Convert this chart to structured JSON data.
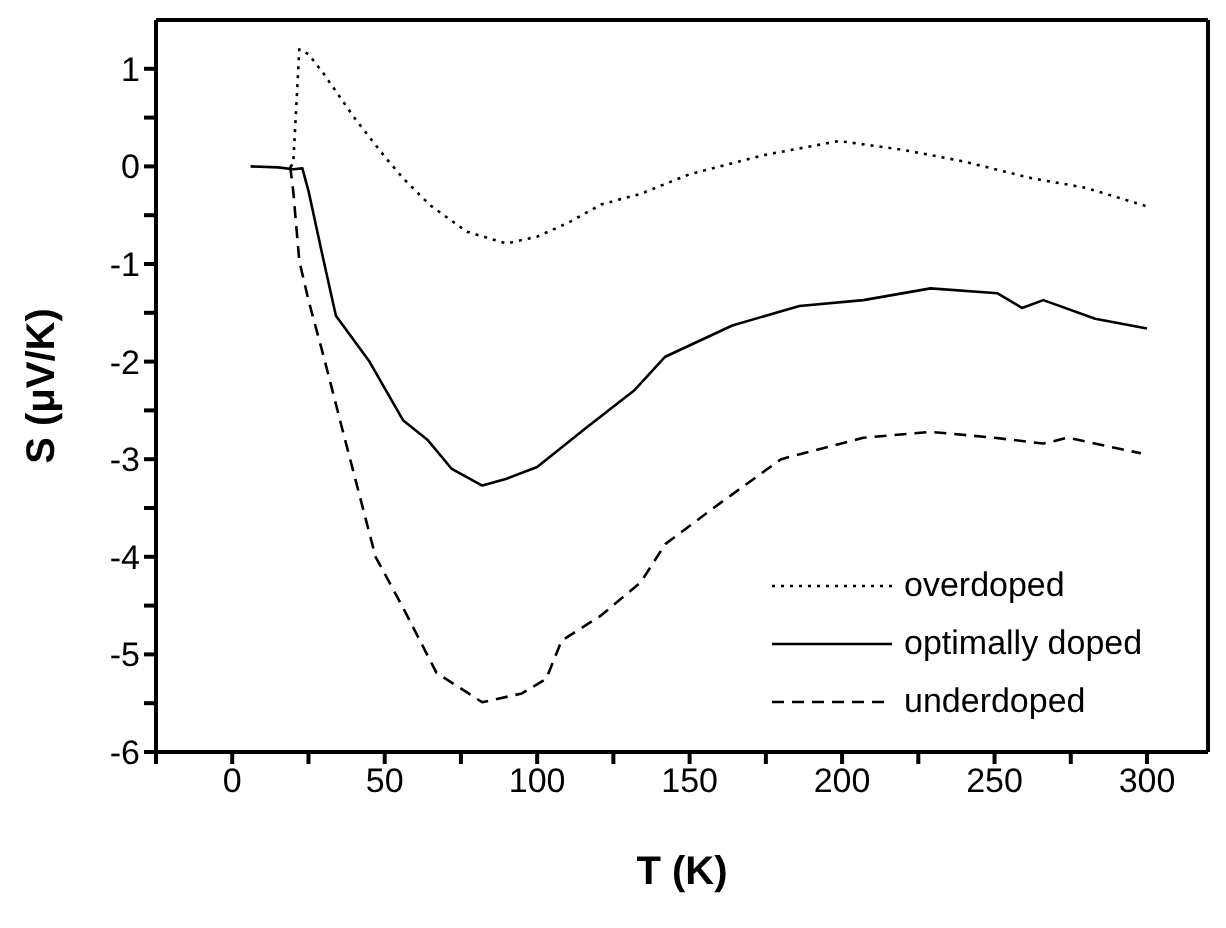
{
  "chart_data": {
    "type": "line",
    "xlabel": "T (K)",
    "ylabel": "S (μV/K)",
    "xlim": [
      -25,
      320
    ],
    "ylim": [
      -6,
      1.5
    ],
    "xticks": [
      {
        "value": -25,
        "label": null
      },
      0,
      {
        "value": 25,
        "label": null
      },
      50,
      {
        "value": 75,
        "label": null
      },
      100,
      {
        "value": 125,
        "label": null
      },
      150,
      {
        "value": 175,
        "label": null
      },
      200,
      {
        "value": 225,
        "label": null
      },
      250,
      {
        "value": 275,
        "label": null
      },
      300
    ],
    "yticks": [
      -6,
      {
        "value": -5.5,
        "label": null
      },
      -5,
      {
        "value": -4.5,
        "label": null
      },
      -4,
      {
        "value": -3.5,
        "label": null
      },
      -3,
      {
        "value": -2.5,
        "label": null
      },
      -2,
      {
        "value": -1.5,
        "label": null
      },
      -1,
      {
        "value": -0.5,
        "label": null
      },
      0,
      {
        "value": 0.5,
        "label": null
      },
      1
    ],
    "legend": "bottom right",
    "marker": "none",
    "series": [
      {
        "name": "overdoped",
        "color": "#000000",
        "line_style": "dotted",
        "x": [
          19,
          20,
          22,
          25,
          30,
          40,
          50,
          56,
          65,
          77,
          90,
          100,
          110,
          121,
          134,
          150,
          175,
          199,
          220,
          240,
          262,
          280,
          300
        ],
        "values": [
          0,
          0.02,
          1.2,
          1.15,
          0.95,
          0.5,
          0.1,
          -0.12,
          -0.4,
          -0.67,
          -0.79,
          -0.72,
          -0.58,
          -0.39,
          -0.28,
          -0.08,
          0.12,
          0.26,
          0.17,
          0.05,
          -0.12,
          -0.22,
          -0.41
        ]
      },
      {
        "name": "optimally doped",
        "color": "#000000",
        "line_style": "solid",
        "x": [
          6,
          15,
          20,
          23,
          25,
          30,
          34,
          45,
          56,
          64,
          72,
          82,
          90,
          100,
          116,
          132,
          142,
          164,
          186,
          207,
          229,
          251,
          259,
          266,
          283,
          300
        ],
        "values": [
          0,
          -0.01,
          -0.03,
          -0.02,
          -0.25,
          -0.97,
          -1.53,
          -2.0,
          -2.6,
          -2.8,
          -3.1,
          -3.27,
          -3.2,
          -3.08,
          -2.68,
          -2.29,
          -1.95,
          -1.63,
          -1.43,
          -1.37,
          -1.25,
          -1.3,
          -1.45,
          -1.37,
          -1.56,
          -1.66
        ]
      },
      {
        "name": "underdoped",
        "color": "#000000",
        "line_style": "dashed",
        "x": [
          19,
          20,
          22,
          25,
          30,
          36,
          47,
          56,
          67,
          82,
          95,
          103,
          108,
          121,
          134,
          142,
          160,
          180,
          207,
          229,
          250,
          266,
          274,
          298
        ],
        "values": [
          0,
          -0.25,
          -0.97,
          -1.37,
          -1.95,
          -2.68,
          -4.0,
          -4.52,
          -5.19,
          -5.49,
          -5.4,
          -5.25,
          -4.86,
          -4.6,
          -4.26,
          -3.87,
          -3.45,
          -3.0,
          -2.78,
          -2.72,
          -2.78,
          -2.84,
          -2.78,
          -2.94
        ]
      }
    ]
  }
}
